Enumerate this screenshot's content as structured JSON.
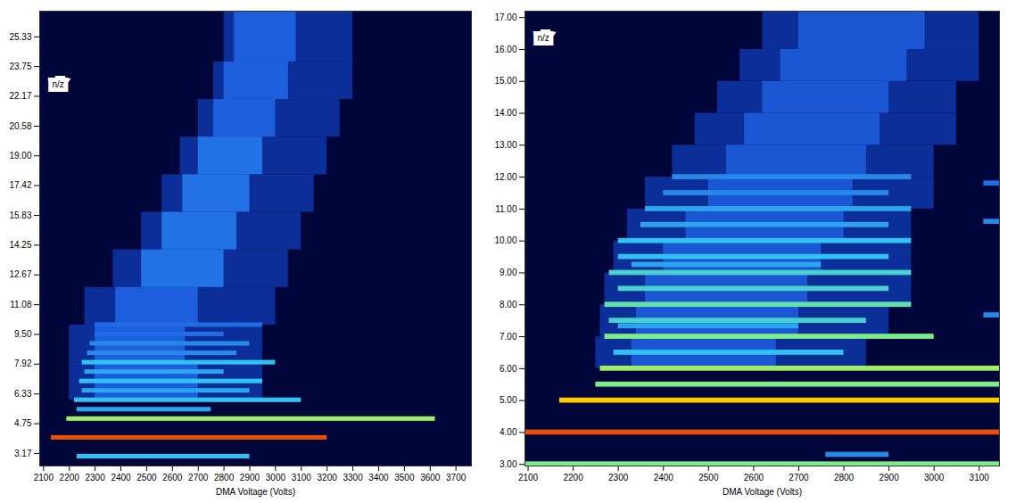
{
  "chart_data": [
    {
      "type": "heatmap",
      "annotation": "n/z",
      "x_label": "DMA Voltage (Volts)",
      "xlim": [
        2085,
        3760
      ],
      "xticks": [
        2100,
        2200,
        2300,
        2400,
        2500,
        2600,
        2700,
        2800,
        2900,
        3000,
        3100,
        3200,
        3300,
        3400,
        3500,
        3600,
        3700
      ],
      "ylim": [
        2.5,
        26.7
      ],
      "yticks": [
        3.17,
        4.75,
        6.33,
        7.92,
        {
          "value": 9.5,
          "label": "9.50"
        },
        11.08,
        12.67,
        14.25,
        15.83,
        17.42,
        {
          "value": 19,
          "label": "19.00"
        },
        20.58,
        22.17,
        23.75,
        25.33
      ],
      "zlim": [
        0,
        10
      ],
      "cells": [
        {
          "x1": 2200,
          "x2": 2950,
          "y1": 6,
          "y2": 8,
          "v": 1.8
        },
        {
          "x1": 2200,
          "x2": 2950,
          "y1": 8,
          "y2": 10,
          "v": 1.8
        },
        {
          "x1": 2260,
          "x2": 3000,
          "y1": 10,
          "y2": 12,
          "v": 1.8
        },
        {
          "x1": 2370,
          "x2": 3050,
          "y1": 12,
          "y2": 14,
          "v": 1.8
        },
        {
          "x1": 2480,
          "x2": 3100,
          "y1": 14,
          "y2": 16,
          "v": 1.8
        },
        {
          "x1": 2560,
          "x2": 3150,
          "y1": 16,
          "y2": 18,
          "v": 1.8
        },
        {
          "x1": 2630,
          "x2": 3200,
          "y1": 18,
          "y2": 20,
          "v": 1.8
        },
        {
          "x1": 2700,
          "x2": 3250,
          "y1": 20,
          "y2": 22,
          "v": 1.8
        },
        {
          "x1": 2760,
          "x2": 3300,
          "y1": 22,
          "y2": 24,
          "v": 1.8
        },
        {
          "x1": 2800,
          "x2": 3300,
          "y1": 24,
          "y2": 26.7,
          "v": 1.8
        },
        {
          "x1": 2300,
          "x2": 2700,
          "y1": 6,
          "y2": 8,
          "v": 3.2
        },
        {
          "x1": 2300,
          "x2": 2650,
          "y1": 8,
          "y2": 10,
          "v": 3.2
        },
        {
          "x1": 2380,
          "x2": 2700,
          "y1": 10,
          "y2": 12,
          "v": 3.2
        },
        {
          "x1": 2480,
          "x2": 2800,
          "y1": 12,
          "y2": 14,
          "v": 3.6
        },
        {
          "x1": 2560,
          "x2": 2850,
          "y1": 14,
          "y2": 16,
          "v": 3.6
        },
        {
          "x1": 2640,
          "x2": 2900,
          "y1": 16,
          "y2": 18,
          "v": 3.6
        },
        {
          "x1": 2700,
          "x2": 2950,
          "y1": 18,
          "y2": 20,
          "v": 3.6
        },
        {
          "x1": 2760,
          "x2": 3000,
          "y1": 20,
          "y2": 22,
          "v": 3.2
        },
        {
          "x1": 2800,
          "x2": 3050,
          "y1": 22,
          "y2": 24,
          "v": 3.2
        },
        {
          "x1": 2840,
          "x2": 3080,
          "y1": 24,
          "y2": 26.7,
          "v": 3.2
        },
        {
          "x1": 2230,
          "x2": 2900,
          "y1": 2.88,
          "y2": 3.12,
          "v": 5
        },
        {
          "x1": 2130,
          "x2": 3200,
          "y1": 3.88,
          "y2": 4.12,
          "v": 9.5
        },
        {
          "x1": 2190,
          "x2": 3620,
          "y1": 4.88,
          "y2": 5.12,
          "v": 7
        },
        {
          "x1": 2230,
          "x2": 2750,
          "y1": 5.38,
          "y2": 5.62,
          "v": 4.5
        },
        {
          "x1": 2220,
          "x2": 3100,
          "y1": 5.88,
          "y2": 6.12,
          "v": 5
        },
        {
          "x1": 2250,
          "x2": 2900,
          "y1": 6.38,
          "y2": 6.62,
          "v": 4.5
        },
        {
          "x1": 2240,
          "x2": 2950,
          "y1": 6.88,
          "y2": 7.12,
          "v": 5
        },
        {
          "x1": 2260,
          "x2": 2800,
          "y1": 7.38,
          "y2": 7.62,
          "v": 4.5
        },
        {
          "x1": 2250,
          "x2": 3000,
          "y1": 7.88,
          "y2": 8.12,
          "v": 5
        },
        {
          "x1": 2270,
          "x2": 2850,
          "y1": 8.38,
          "y2": 8.62,
          "v": 4
        },
        {
          "x1": 2280,
          "x2": 2900,
          "y1": 8.88,
          "y2": 9.12,
          "v": 4
        },
        {
          "x1": 2300,
          "x2": 2800,
          "y1": 9.38,
          "y2": 9.62,
          "v": 3.5
        },
        {
          "x1": 2300,
          "x2": 2950,
          "y1": 9.88,
          "y2": 10.12,
          "v": 3.5
        }
      ]
    },
    {
      "type": "heatmap",
      "annotation": "n/z",
      "x_label": "DMA Voltage (Volts)",
      "xlim": [
        2093,
        3145
      ],
      "xticks": [
        2100,
        2200,
        2300,
        2400,
        2500,
        2600,
        2700,
        2800,
        2900,
        3000,
        3100
      ],
      "ylim": [
        2.95,
        17.2
      ],
      "yticks": [
        {
          "value": 3,
          "label": "3.00"
        },
        {
          "value": 4,
          "label": "4.00"
        },
        {
          "value": 5,
          "label": "5.00"
        },
        {
          "value": 6,
          "label": "6.00"
        },
        {
          "value": 7,
          "label": "7.00"
        },
        {
          "value": 8,
          "label": "8.00"
        },
        {
          "value": 9,
          "label": "9.00"
        },
        {
          "value": 10,
          "label": "10.00"
        },
        {
          "value": 11,
          "label": "11.00"
        },
        {
          "value": 12,
          "label": "12.00"
        },
        {
          "value": 13,
          "label": "13.00"
        },
        {
          "value": 14,
          "label": "14.00"
        },
        {
          "value": 15,
          "label": "15.00"
        },
        {
          "value": 16,
          "label": "16.00"
        },
        {
          "value": 17,
          "label": "17.00"
        }
      ],
      "zlim": [
        0,
        10
      ],
      "cells": [
        {
          "x1": 2250,
          "x2": 2850,
          "y1": 6,
          "y2": 7,
          "v": 1.8
        },
        {
          "x1": 2260,
          "x2": 2900,
          "y1": 7,
          "y2": 8,
          "v": 1.8
        },
        {
          "x1": 2270,
          "x2": 2950,
          "y1": 8,
          "y2": 9,
          "v": 1.8
        },
        {
          "x1": 2290,
          "x2": 2950,
          "y1": 9,
          "y2": 10,
          "v": 1.8
        },
        {
          "x1": 2320,
          "x2": 2950,
          "y1": 10,
          "y2": 11,
          "v": 1.8
        },
        {
          "x1": 2360,
          "x2": 3000,
          "y1": 11,
          "y2": 12,
          "v": 1.8
        },
        {
          "x1": 2420,
          "x2": 3000,
          "y1": 12,
          "y2": 13,
          "v": 1.8
        },
        {
          "x1": 2470,
          "x2": 3050,
          "y1": 13,
          "y2": 14,
          "v": 1.8
        },
        {
          "x1": 2520,
          "x2": 3050,
          "y1": 14,
          "y2": 15,
          "v": 1.8
        },
        {
          "x1": 2570,
          "x2": 3100,
          "y1": 15,
          "y2": 16,
          "v": 1.8
        },
        {
          "x1": 2620,
          "x2": 3100,
          "y1": 16,
          "y2": 17.2,
          "v": 1.8
        },
        {
          "x1": 2330,
          "x2": 2650,
          "y1": 6,
          "y2": 7,
          "v": 3
        },
        {
          "x1": 2340,
          "x2": 2700,
          "y1": 7,
          "y2": 8,
          "v": 3
        },
        {
          "x1": 2360,
          "x2": 2720,
          "y1": 8,
          "y2": 9,
          "v": 3
        },
        {
          "x1": 2400,
          "x2": 2750,
          "y1": 9,
          "y2": 10,
          "v": 3
        },
        {
          "x1": 2450,
          "x2": 2800,
          "y1": 10,
          "y2": 11,
          "v": 3
        },
        {
          "x1": 2500,
          "x2": 2820,
          "y1": 11,
          "y2": 12,
          "v": 3
        },
        {
          "x1": 2540,
          "x2": 2850,
          "y1": 12,
          "y2": 13,
          "v": 3
        },
        {
          "x1": 2580,
          "x2": 2880,
          "y1": 13,
          "y2": 14,
          "v": 3
        },
        {
          "x1": 2620,
          "x2": 2900,
          "y1": 14,
          "y2": 15,
          "v": 3
        },
        {
          "x1": 2660,
          "x2": 2940,
          "y1": 15,
          "y2": 16,
          "v": 3
        },
        {
          "x1": 2700,
          "x2": 2980,
          "y1": 16,
          "y2": 17.2,
          "v": 3
        },
        {
          "x1": 2093,
          "x2": 3145,
          "y1": 2.95,
          "y2": 3.08,
          "v": 6.5
        },
        {
          "x1": 2760,
          "x2": 2900,
          "y1": 3.22,
          "y2": 3.38,
          "v": 4
        },
        {
          "x1": 2093,
          "x2": 3145,
          "y1": 3.92,
          "y2": 4.08,
          "v": 9.5
        },
        {
          "x1": 2170,
          "x2": 3145,
          "y1": 4.92,
          "y2": 5.08,
          "v": 8.5
        },
        {
          "x1": 2250,
          "x2": 3145,
          "y1": 5.42,
          "y2": 5.58,
          "v": 6.5
        },
        {
          "x1": 2260,
          "x2": 3145,
          "y1": 5.92,
          "y2": 6.08,
          "v": 7
        },
        {
          "x1": 2290,
          "x2": 2800,
          "y1": 6.42,
          "y2": 6.58,
          "v": 5
        },
        {
          "x1": 2270,
          "x2": 3000,
          "y1": 6.92,
          "y2": 7.08,
          "v": 6.5
        },
        {
          "x1": 2300,
          "x2": 2700,
          "y1": 7.25,
          "y2": 7.41,
          "v": 4.5
        },
        {
          "x1": 2280,
          "x2": 2850,
          "y1": 7.42,
          "y2": 7.58,
          "v": 5.5
        },
        {
          "x1": 3110,
          "x2": 3145,
          "y1": 7.59,
          "y2": 7.75,
          "v": 4
        },
        {
          "x1": 2270,
          "x2": 2950,
          "y1": 7.92,
          "y2": 8.08,
          "v": 6
        },
        {
          "x1": 2300,
          "x2": 2900,
          "y1": 8.42,
          "y2": 8.58,
          "v": 5.5
        },
        {
          "x1": 2280,
          "x2": 2950,
          "y1": 8.92,
          "y2": 9.08,
          "v": 5.5
        },
        {
          "x1": 2330,
          "x2": 2750,
          "y1": 9.17,
          "y2": 9.33,
          "v": 4.5
        },
        {
          "x1": 2300,
          "x2": 2900,
          "y1": 9.42,
          "y2": 9.58,
          "v": 5
        },
        {
          "x1": 2300,
          "x2": 2950,
          "y1": 9.92,
          "y2": 10.08,
          "v": 5
        },
        {
          "x1": 2350,
          "x2": 2900,
          "y1": 10.42,
          "y2": 10.58,
          "v": 4.5
        },
        {
          "x1": 3110,
          "x2": 3145,
          "y1": 10.52,
          "y2": 10.68,
          "v": 4
        },
        {
          "x1": 2360,
          "x2": 2950,
          "y1": 10.92,
          "y2": 11.08,
          "v": 4.5
        },
        {
          "x1": 2400,
          "x2": 2900,
          "y1": 11.42,
          "y2": 11.58,
          "v": 4
        },
        {
          "x1": 3110,
          "x2": 3145,
          "y1": 11.72,
          "y2": 11.88,
          "v": 3.5
        },
        {
          "x1": 2420,
          "x2": 2950,
          "y1": 11.92,
          "y2": 12.08,
          "v": 4
        }
      ]
    }
  ]
}
